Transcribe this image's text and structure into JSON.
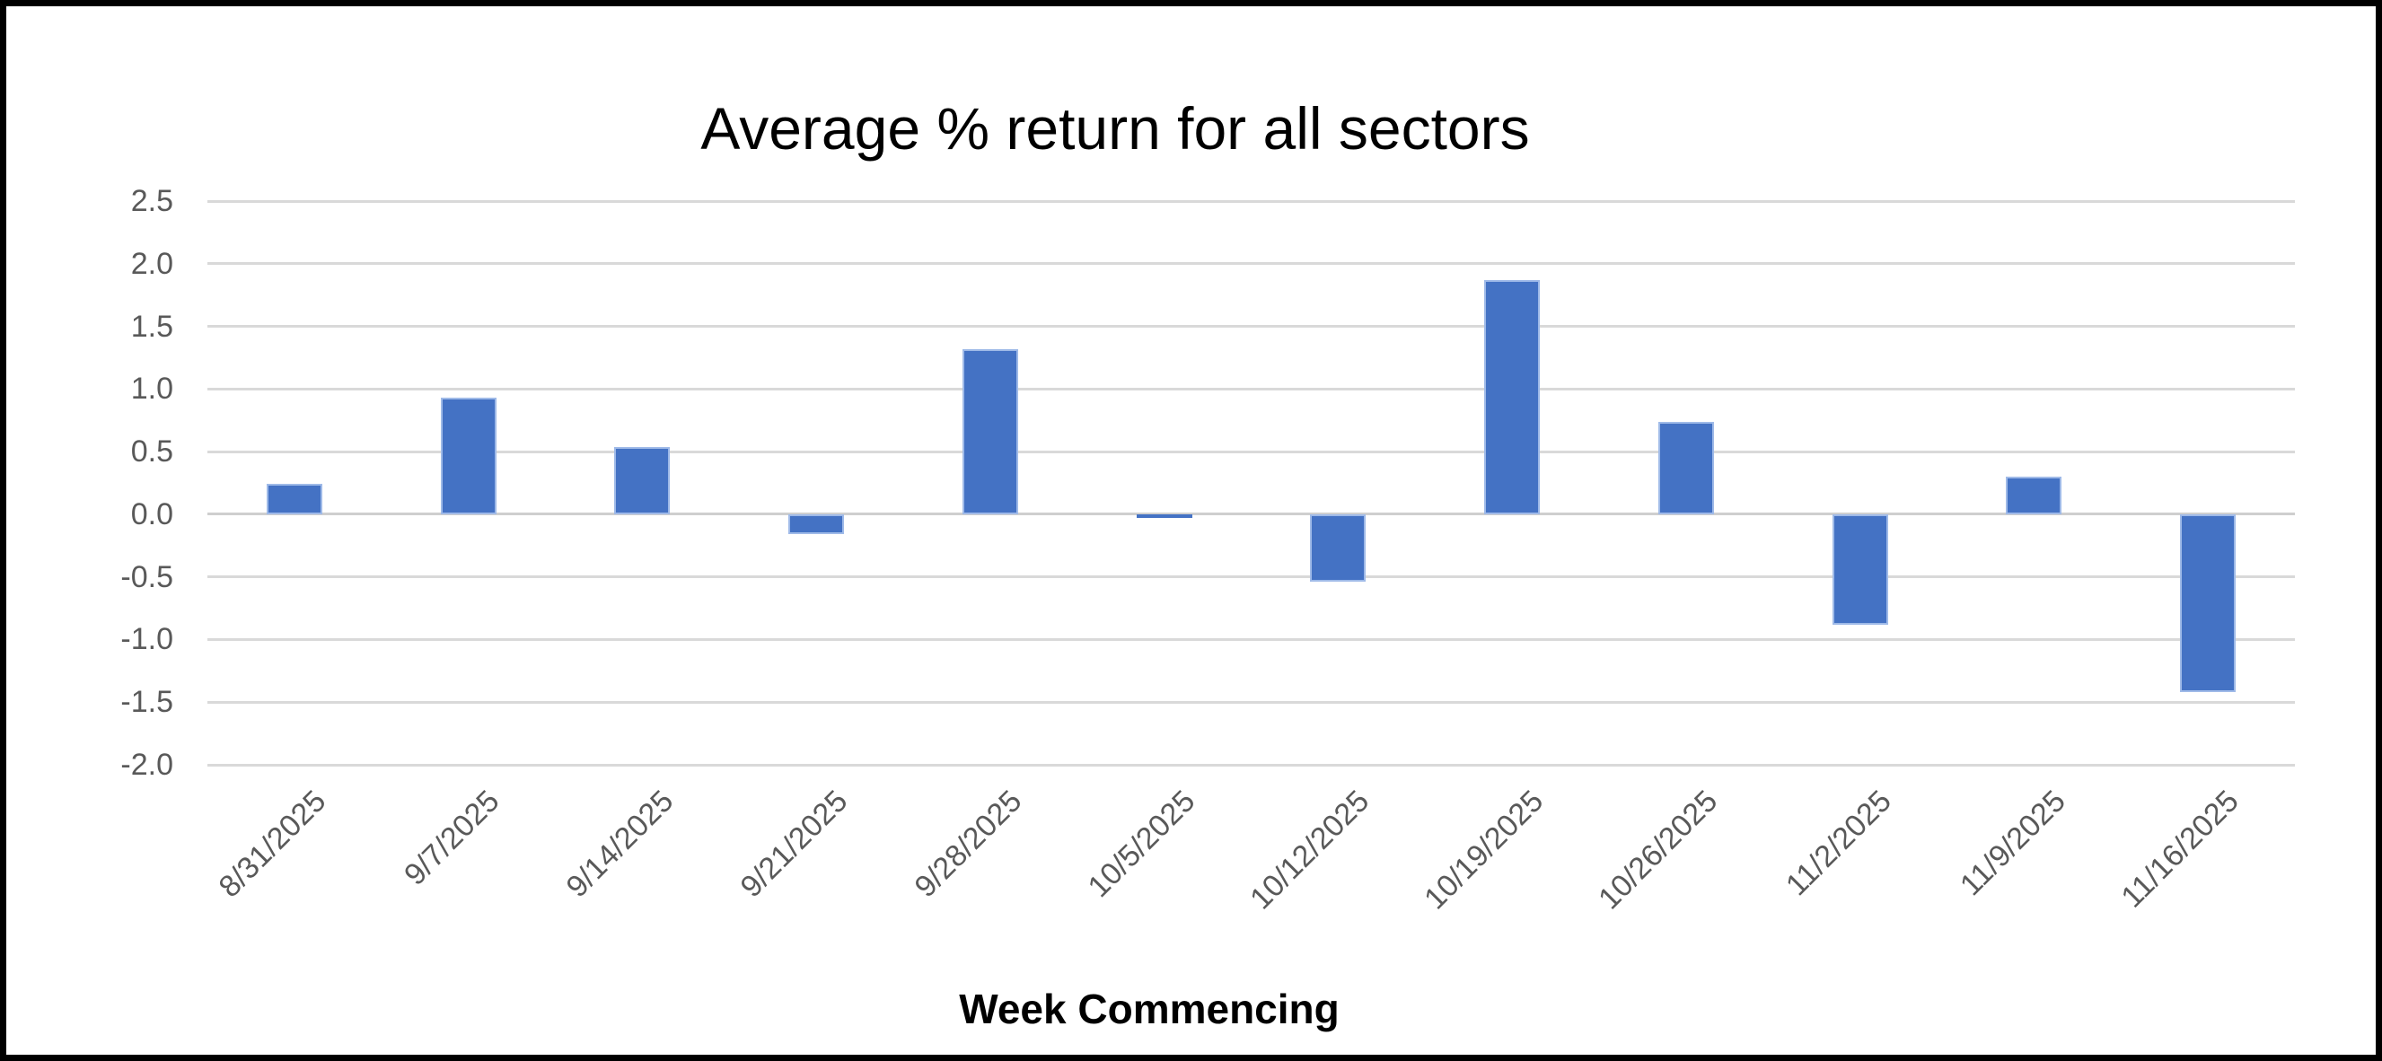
{
  "chart_data": {
    "type": "bar",
    "title": "Average % return for all sectors",
    "xlabel": "Week Commencing",
    "ylabel": "",
    "categories": [
      "8/31/2025",
      "9/7/2025",
      "9/14/2025",
      "9/21/2025",
      "9/28/2025",
      "10/5/2025",
      "10/12/2025",
      "10/19/2025",
      "10/26/2025",
      "11/2/2025",
      "11/9/2025",
      "11/16/2025"
    ],
    "values": [
      0.24,
      0.93,
      0.54,
      -0.16,
      1.32,
      -0.03,
      -0.54,
      1.87,
      0.74,
      -0.88,
      0.3,
      -1.42
    ],
    "y_tick_labels": [
      "2.5",
      "2.0",
      "1.5",
      "1.0",
      "0.5",
      "0.0",
      "-0.5",
      "-1.0",
      "-1.5",
      "-2.0"
    ],
    "ylim": [
      -2.0,
      2.5
    ],
    "grid": true,
    "legend_position": "none",
    "bar_color": "#4472C4",
    "gridline_color": "#D9D9D9",
    "tick_label_color": "#595959",
    "frame_color": "#000000"
  }
}
